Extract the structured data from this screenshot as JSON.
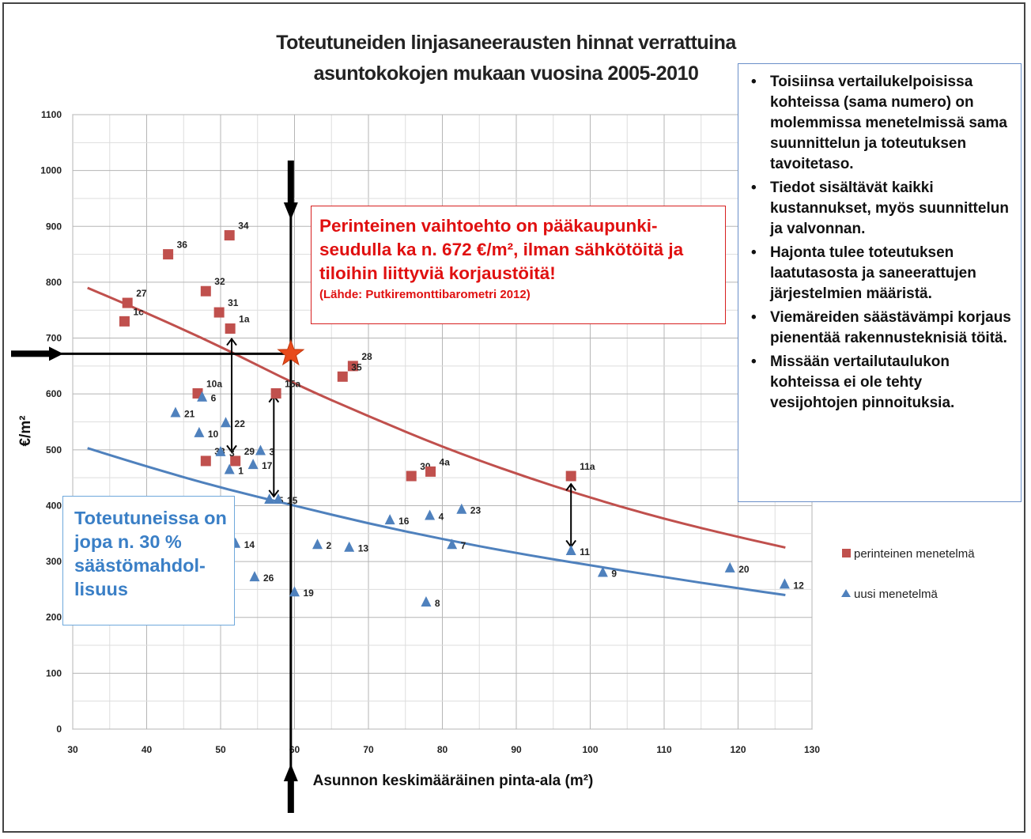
{
  "chart_data": {
    "type": "scatter",
    "title": [
      "Toteutuneiden linjasaneerausten hinnat verrattuina",
      "asuntokokojen mukaan vuosina 2005-2010"
    ],
    "xlabel": "Asunnon keskimääräinen pinta-ala (m²)",
    "ylabel": "€/m²",
    "xlim": [
      30,
      130
    ],
    "ylim": [
      0,
      1100
    ],
    "xticks": [
      30,
      40,
      50,
      60,
      70,
      80,
      90,
      100,
      110,
      120,
      130
    ],
    "yticks": [
      0,
      100,
      200,
      300,
      400,
      500,
      600,
      700,
      800,
      900,
      1000,
      1100
    ],
    "grid": true,
    "legend_position": "right",
    "series": [
      {
        "name": "perinteinen menetelmä",
        "marker": "square",
        "color": "#c0504d",
        "points": [
          {
            "x": 51.2,
            "y": 884,
            "label": "34"
          },
          {
            "x": 42.9,
            "y": 850,
            "label": "36"
          },
          {
            "x": 48.0,
            "y": 784,
            "label": "32"
          },
          {
            "x": 37.4,
            "y": 763,
            "label": "27"
          },
          {
            "x": 49.8,
            "y": 746,
            "label": "31"
          },
          {
            "x": 37.0,
            "y": 730,
            "label": "1c"
          },
          {
            "x": 51.3,
            "y": 717,
            "label": "1a"
          },
          {
            "x": 67.9,
            "y": 650,
            "label": "28"
          },
          {
            "x": 66.5,
            "y": 631,
            "label": "35"
          },
          {
            "x": 46.9,
            "y": 601,
            "label": "10a"
          },
          {
            "x": 57.5,
            "y": 601,
            "label": "15a"
          },
          {
            "x": 48.0,
            "y": 480,
            "label": "33"
          },
          {
            "x": 52.0,
            "y": 480,
            "label": "29"
          },
          {
            "x": 75.8,
            "y": 453,
            "label": "30"
          },
          {
            "x": 78.4,
            "y": 461,
            "label": "4a"
          },
          {
            "x": 97.4,
            "y": 453,
            "label": "11a"
          }
        ]
      },
      {
        "name": "uusi menetelmä",
        "marker": "triangle",
        "color": "#4f81bd",
        "points": [
          {
            "x": 43.9,
            "y": 567,
            "label": "21"
          },
          {
            "x": 47.5,
            "y": 595,
            "label": "6"
          },
          {
            "x": 47.1,
            "y": 531,
            "label": "10"
          },
          {
            "x": 50.7,
            "y": 549,
            "label": "22"
          },
          {
            "x": 50.0,
            "y": 497,
            "label": "3"
          },
          {
            "x": 55.4,
            "y": 499,
            "label": "3"
          },
          {
            "x": 51.2,
            "y": 465,
            "label": "1"
          },
          {
            "x": 54.4,
            "y": 474,
            "label": "17"
          },
          {
            "x": 56.6,
            "y": 412,
            "label": "5"
          },
          {
            "x": 57.8,
            "y": 412,
            "label": "15"
          },
          {
            "x": 52.0,
            "y": 333,
            "label": "14"
          },
          {
            "x": 63.1,
            "y": 331,
            "label": "2"
          },
          {
            "x": 67.4,
            "y": 326,
            "label": "13"
          },
          {
            "x": 54.6,
            "y": 273,
            "label": "26"
          },
          {
            "x": 60.0,
            "y": 246,
            "label": "19"
          },
          {
            "x": 72.9,
            "y": 375,
            "label": "16"
          },
          {
            "x": 78.3,
            "y": 383,
            "label": "4"
          },
          {
            "x": 82.6,
            "y": 394,
            "label": "23"
          },
          {
            "x": 81.3,
            "y": 331,
            "label": "7"
          },
          {
            "x": 77.8,
            "y": 228,
            "label": "8"
          },
          {
            "x": 97.4,
            "y": 320,
            "label": "11"
          },
          {
            "x": 101.7,
            "y": 281,
            "label": "9"
          },
          {
            "x": 118.9,
            "y": 289,
            "label": "20"
          },
          {
            "x": 126.3,
            "y": 260,
            "label": "12"
          }
        ]
      }
    ],
    "trendlines": [
      {
        "series": "perinteinen menetelmä",
        "color": "#c0504d",
        "points": [
          [
            32,
            790
          ],
          [
            40,
            745
          ],
          [
            50,
            685
          ],
          [
            60,
            618
          ],
          [
            70,
            560
          ],
          [
            80,
            505
          ],
          [
            90,
            457
          ],
          [
            100,
            414
          ],
          [
            110,
            376
          ],
          [
            120,
            344
          ],
          [
            126.4,
            325
          ]
        ]
      },
      {
        "series": "uusi menetelmä",
        "color": "#4f81bd",
        "points": [
          [
            32,
            503
          ],
          [
            40,
            470
          ],
          [
            50,
            432
          ],
          [
            60,
            400
          ],
          [
            70,
            368
          ],
          [
            80,
            340
          ],
          [
            90,
            315
          ],
          [
            100,
            293
          ],
          [
            110,
            272
          ],
          [
            120,
            252
          ],
          [
            126.4,
            240
          ]
        ]
      }
    ],
    "annotations": {
      "marker_star": {
        "x": 59.5,
        "y": 672,
        "color": "#e84a1b"
      },
      "vertical_line_x": 59.5,
      "horizontal_line_y": 672,
      "double_arrows": [
        {
          "x": 51.5,
          "y_from": 495,
          "y_to": 700
        },
        {
          "x": 57.2,
          "y_from": 415,
          "y_to": 598
        },
        {
          "x": 97.4,
          "y_from": 325,
          "y_to": 440
        }
      ]
    }
  },
  "info_box": {
    "items": [
      "Toisiinsa vertailukelpoisissa kohteissa (sama numero) on molemmissa menetelmissä sama suunnittelun ja toteutuksen tavoitetaso.",
      "Tiedot sisältävät kaikki kustannukset, myös suunnittelun ja valvonnan.",
      "Hajonta tulee toteutuksen laatutasosta ja saneerattujen järjestelmien määristä.",
      "Viemäreiden säästävämpi korjaus pienentää rakennusteknisiä töitä.",
      "Missään vertailutaulukon kohteissa ei ole tehty vesijohtojen pinnoituksia."
    ]
  },
  "red_box": {
    "main": "Perinteinen vaihtoehto on pääkaupunki-seudulla ka n. 672 €/m², ilman sähkötöitä ja tiloihin liittyviä korjaustöitä!",
    "source": "(Lähde: Putkiremonttibarometri 2012)"
  },
  "blue_box": {
    "text": "Toteutuneissa on jopa n. 30 % säästömahdol-lisuus"
  }
}
